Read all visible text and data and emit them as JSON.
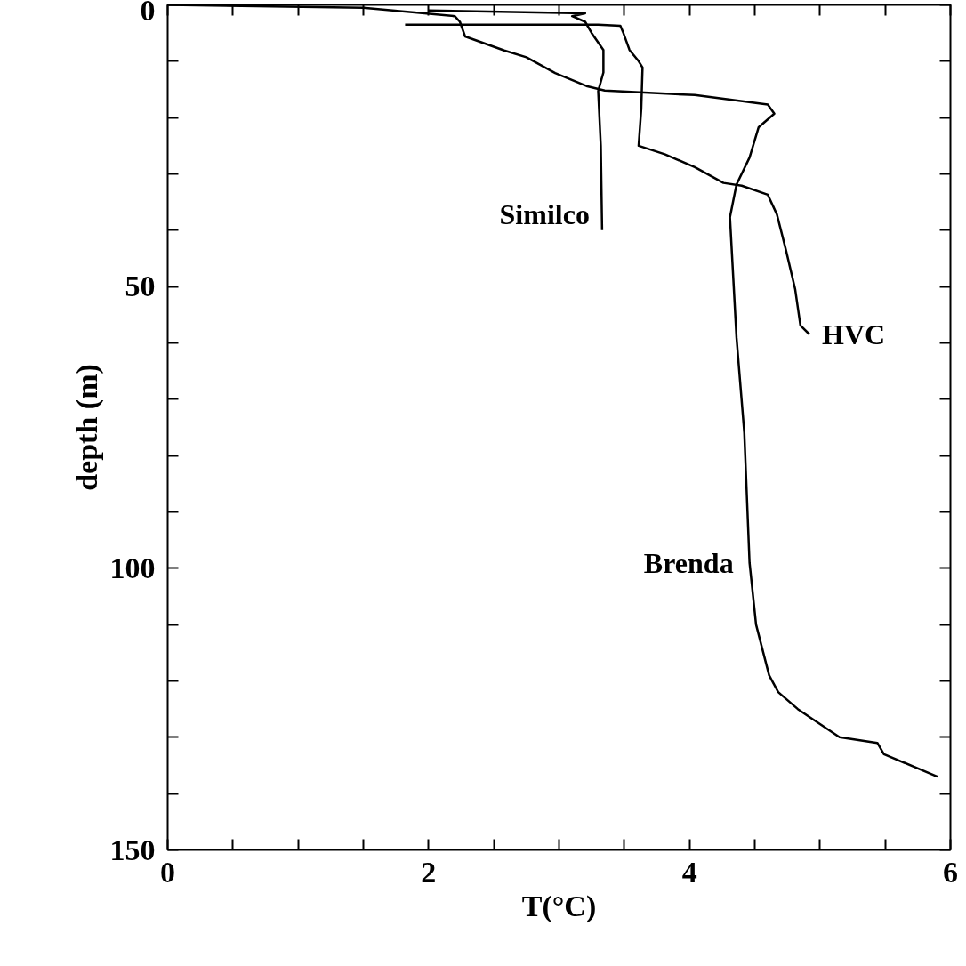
{
  "chart_data": {
    "type": "line",
    "xlabel": "T(°C)",
    "ylabel": "depth (m)",
    "xlim": [
      0,
      6
    ],
    "ylim": [
      150,
      0
    ],
    "xticks": [
      0,
      {
        "value": 0.5,
        "label": null
      },
      {
        "value": 1,
        "label": null
      },
      {
        "value": 1.5,
        "label": null
      },
      2,
      {
        "value": 2.5,
        "label": null
      },
      {
        "value": 3,
        "label": null
      },
      {
        "value": 3.5,
        "label": null
      },
      4,
      {
        "value": 4.5,
        "label": null
      },
      {
        "value": 5,
        "label": null
      },
      {
        "value": 5.5,
        "label": null
      },
      6
    ],
    "yticks": [
      0,
      {
        "value": 10,
        "label": null
      },
      {
        "value": 20,
        "label": null
      },
      {
        "value": 30,
        "label": null
      },
      {
        "value": 40,
        "label": null
      },
      50,
      {
        "value": 60,
        "label": null
      },
      {
        "value": 70,
        "label": null
      },
      {
        "value": 80,
        "label": null
      },
      {
        "value": 90,
        "label": null
      },
      100,
      {
        "value": 110,
        "label": null
      },
      {
        "value": 120,
        "label": null
      },
      {
        "value": 130,
        "label": null
      },
      {
        "value": 140,
        "label": null
      },
      150
    ],
    "grid": false,
    "marker": "none",
    "line_style": "solid",
    "series": [
      {
        "name": "Similco",
        "color": "#000000",
        "x": [
          2.0,
          3.2,
          3.1,
          3.2,
          3.25,
          3.34,
          3.34,
          3.3,
          3.32,
          3.33
        ],
        "values": [
          1,
          1.5,
          2,
          3,
          5,
          8,
          12,
          15.3,
          25,
          40
        ]
      },
      {
        "name": "HVC",
        "color": "#000000",
        "x": [
          1.82,
          3.3,
          3.47,
          3.49,
          3.54,
          3.61,
          3.64,
          3.63,
          3.61,
          3.81,
          4.04,
          4.26,
          4.4,
          4.6,
          4.67,
          4.74,
          4.81,
          4.85,
          4.92
        ],
        "values": [
          3.5,
          3.5,
          3.7,
          4.8,
          8,
          10,
          11.1,
          18.5,
          25,
          26.5,
          28.8,
          31.6,
          32.1,
          33.7,
          37.2,
          43.6,
          50.5,
          56.9,
          58.5
        ]
      },
      {
        "name": "Brenda",
        "color": "#000000",
        "x": [
          0,
          1.5,
          2.2,
          2.24,
          2.28,
          2.58,
          2.75,
          2.97,
          3.21,
          3.35,
          4.04,
          4.6,
          4.65,
          4.53,
          4.46,
          4.36,
          4.31,
          4.36,
          4.42,
          4.46,
          4.51,
          4.61,
          4.68,
          4.83,
          5.15,
          5.44,
          5.49,
          5.9
        ],
        "values": [
          0,
          0.5,
          2,
          3,
          5.6,
          8.1,
          9.3,
          12.1,
          14.4,
          15.2,
          16,
          17.7,
          19.3,
          21.7,
          27.1,
          31.9,
          37.7,
          59,
          76,
          99,
          110,
          119,
          122,
          125,
          130,
          131,
          133,
          137
        ]
      }
    ]
  }
}
